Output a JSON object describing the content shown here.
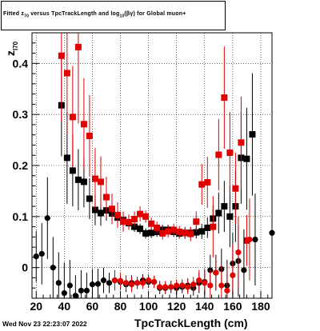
{
  "chart_data": {
    "type": "scatter",
    "title": "Fitted z_{70} versus TpcTrackLength and log_{10}(βγ) for Global muon+",
    "xlabel": "TpcTrackLength (cm)",
    "ylabel": "z_{I70}",
    "xlim": [
      17,
      188
    ],
    "ylim": [
      -0.06,
      0.46
    ],
    "xticks": [
      20,
      40,
      60,
      80,
      100,
      120,
      140,
      160,
      180
    ],
    "yticks": [
      0,
      0.1,
      0.2,
      0.3,
      0.4
    ],
    "grid": true,
    "series": [
      {
        "color": "#000000",
        "marker": "square",
        "points": [
          [
            38,
            0.318,
            0.1
          ],
          [
            42,
            0.215,
            0.09
          ],
          [
            46,
            0.19,
            0.07
          ],
          [
            50,
            0.172,
            0.06
          ],
          [
            54,
            0.168,
            0.05
          ],
          [
            58,
            0.135,
            0.04
          ],
          [
            62,
            0.113,
            0.03
          ],
          [
            66,
            0.107,
            0.025
          ],
          [
            70,
            0.112,
            0.02
          ],
          [
            74,
            0.106,
            0.02
          ],
          [
            78,
            0.098,
            0.015
          ],
          [
            82,
            0.093,
            0.012
          ],
          [
            86,
            0.087,
            0.01
          ],
          [
            90,
            0.08,
            0.01
          ],
          [
            94,
            0.076,
            0.01
          ],
          [
            98,
            0.067,
            0.01
          ],
          [
            102,
            0.068,
            0.01
          ],
          [
            106,
            0.07,
            0.01
          ],
          [
            110,
            0.074,
            0.01
          ],
          [
            114,
            0.074,
            0.01
          ],
          [
            118,
            0.07,
            0.01
          ],
          [
            122,
            0.067,
            0.01
          ],
          [
            126,
            0.068,
            0.01
          ],
          [
            130,
            0.068,
            0.01
          ],
          [
            134,
            0.069,
            0.012
          ],
          [
            138,
            0.071,
            0.015
          ],
          [
            142,
            0.078,
            0.02
          ],
          [
            146,
            0.096,
            0.025
          ],
          [
            150,
            0.107,
            0.04
          ],
          [
            154,
            0.12,
            0.05
          ],
          [
            158,
            0.1,
            0.06
          ],
          [
            162,
            0.12,
            0.07
          ],
          [
            166,
            0.215,
            0.09
          ],
          [
            170,
            0.213,
            0.1
          ],
          [
            174,
            0.261,
            0.12
          ]
        ]
      },
      {
        "color": "#e00000",
        "marker": "square",
        "points": [
          [
            38,
            0.415,
            0.13
          ],
          [
            42,
            0.381,
            0.12
          ],
          [
            46,
            0.295,
            0.1
          ],
          [
            50,
            0.432,
            0.15
          ],
          [
            54,
            0.281,
            0.09
          ],
          [
            58,
            0.258,
            0.08
          ],
          [
            62,
            0.174,
            0.06
          ],
          [
            66,
            0.168,
            0.05
          ],
          [
            70,
            0.138,
            0.04
          ],
          [
            74,
            0.115,
            0.03
          ],
          [
            78,
            0.103,
            0.025
          ],
          [
            82,
            0.09,
            0.02
          ],
          [
            86,
            0.089,
            0.015
          ],
          [
            90,
            0.095,
            0.015
          ],
          [
            94,
            0.105,
            0.015
          ],
          [
            98,
            0.1,
            0.012
          ],
          [
            102,
            0.086,
            0.012
          ],
          [
            106,
            0.078,
            0.012
          ],
          [
            110,
            0.067,
            0.012
          ],
          [
            114,
            0.071,
            0.012
          ],
          [
            118,
            0.074,
            0.012
          ],
          [
            122,
            0.07,
            0.012
          ],
          [
            126,
            0.068,
            0.012
          ],
          [
            130,
            0.066,
            0.014
          ],
          [
            134,
            0.09,
            0.02
          ],
          [
            138,
            0.163,
            0.04
          ],
          [
            142,
            0.167,
            0.05
          ],
          [
            146,
            0.08,
            0.06
          ],
          [
            150,
            0.221,
            0.07
          ],
          [
            154,
            0.333,
            0.1
          ],
          [
            158,
            0.225,
            0.08
          ],
          [
            162,
            0.155,
            0.07
          ],
          [
            166,
            0.245,
            0.09
          ],
          [
            170,
            0.053,
            0.05
          ]
        ]
      },
      {
        "color": "#000000",
        "marker": "circle",
        "points": [
          [
            20,
            0.022,
            0.05
          ],
          [
            24,
            0.027,
            0.06
          ],
          [
            28,
            0.097,
            0.08
          ],
          [
            32,
            0.0,
            0.06
          ],
          [
            36,
            -0.03,
            0.06
          ],
          [
            40,
            -0.05,
            0.06
          ],
          [
            44,
            -0.035,
            0.05
          ],
          [
            48,
            -0.055,
            0.04
          ],
          [
            52,
            -0.045,
            0.04
          ],
          [
            56,
            -0.045,
            0.035
          ],
          [
            60,
            -0.033,
            0.03
          ],
          [
            64,
            -0.032,
            0.03
          ],
          [
            68,
            -0.025,
            0.025
          ],
          [
            72,
            -0.03,
            0.02
          ],
          [
            76,
            -0.025,
            0.02
          ],
          [
            80,
            -0.028,
            0.015
          ],
          [
            84,
            -0.033,
            0.015
          ],
          [
            88,
            -0.03,
            0.015
          ],
          [
            92,
            -0.03,
            0.012
          ],
          [
            96,
            -0.025,
            0.012
          ],
          [
            100,
            -0.028,
            0.012
          ],
          [
            104,
            -0.028,
            0.012
          ],
          [
            108,
            -0.04,
            0.012
          ],
          [
            112,
            -0.04,
            0.012
          ],
          [
            116,
            -0.038,
            0.012
          ],
          [
            120,
            -0.04,
            0.012
          ],
          [
            124,
            -0.038,
            0.012
          ],
          [
            128,
            -0.035,
            0.014
          ],
          [
            132,
            -0.04,
            0.015
          ],
          [
            136,
            -0.03,
            0.02
          ],
          [
            140,
            -0.028,
            0.025
          ],
          [
            144,
            -0.005,
            0.03
          ],
          [
            148,
            -0.01,
            0.035
          ],
          [
            152,
            -0.003,
            0.04
          ],
          [
            156,
            -0.035,
            0.05
          ],
          [
            160,
            0.008,
            0.06
          ],
          [
            164,
            0.013,
            0.07
          ],
          [
            168,
            -0.005,
            0.08
          ],
          [
            176,
            0.055,
            0.09
          ],
          [
            188,
            0.068,
            0.1
          ]
        ]
      },
      {
        "color": "#e00000",
        "marker": "circle",
        "points": [
          [
            76,
            -0.025,
            0.02
          ],
          [
            80,
            -0.026,
            0.015
          ],
          [
            84,
            -0.03,
            0.015
          ],
          [
            88,
            -0.033,
            0.015
          ],
          [
            92,
            -0.03,
            0.012
          ],
          [
            96,
            -0.03,
            0.012
          ],
          [
            100,
            -0.025,
            0.012
          ],
          [
            104,
            -0.028,
            0.012
          ],
          [
            108,
            -0.038,
            0.012
          ],
          [
            112,
            -0.038,
            0.012
          ],
          [
            116,
            -0.038,
            0.012
          ],
          [
            120,
            -0.035,
            0.012
          ],
          [
            124,
            -0.035,
            0.012
          ],
          [
            128,
            -0.038,
            0.014
          ],
          [
            132,
            -0.033,
            0.015
          ],
          [
            136,
            -0.025,
            0.02
          ],
          [
            140,
            -0.03,
            0.025
          ],
          [
            144,
            -0.035,
            0.03
          ],
          [
            148,
            -0.01,
            0.035
          ],
          [
            152,
            -0.035,
            0.04
          ],
          [
            156,
            -0.045,
            0.05
          ],
          [
            160,
            -0.015,
            0.06
          ],
          [
            164,
            0.03,
            0.07
          ],
          [
            172,
            0.055,
            0.08
          ]
        ]
      }
    ]
  },
  "labels": {
    "title_prefix": "Fitted z",
    "title_sub1": "70",
    "title_mid": " versus TpcTrackLength and log",
    "title_sub2": "10",
    "title_suffix": "(βγ) for Global muon+",
    "timestamp": "Wed Nov 23 22:23:07 2022",
    "xlabel": "TpcTrackLength (cm)",
    "ylabel_main": "z",
    "ylabel_sub": "I70"
  }
}
